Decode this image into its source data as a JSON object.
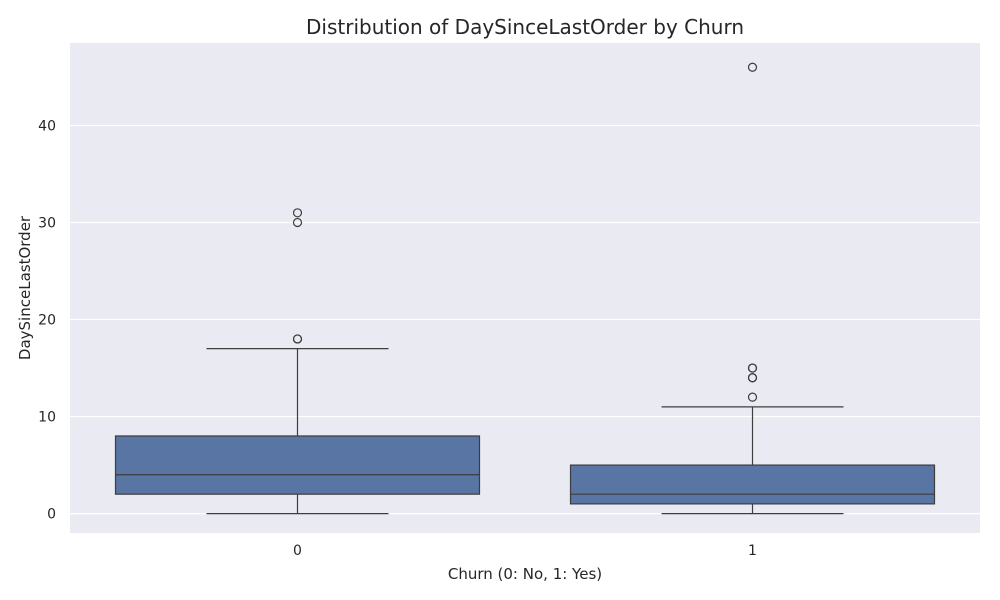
{
  "chart_data": {
    "type": "box",
    "title": "Distribution of DaySinceLastOrder by Churn",
    "xlabel": "Churn (0: No, 1: Yes)",
    "ylabel": "DaySinceLastOrder",
    "categories": [
      "0",
      "1"
    ],
    "ylim": [
      -2,
      48.5
    ],
    "yticks": [
      0,
      10,
      20,
      30,
      40
    ],
    "grid": true,
    "colors": {
      "box": "#5975a4",
      "line": "#3d3d3d",
      "background": "#eaeaf2",
      "grid": "#ffffff"
    },
    "boxes": [
      {
        "category": "0",
        "min": 0,
        "q1": 2,
        "median": 4,
        "q3": 8,
        "max": 17,
        "outliers": [
          18,
          18,
          30,
          31
        ]
      },
      {
        "category": "1",
        "min": 0,
        "q1": 1,
        "median": 2,
        "q3": 5,
        "max": 11,
        "outliers": [
          12,
          14,
          14,
          15,
          15,
          46
        ]
      }
    ]
  }
}
